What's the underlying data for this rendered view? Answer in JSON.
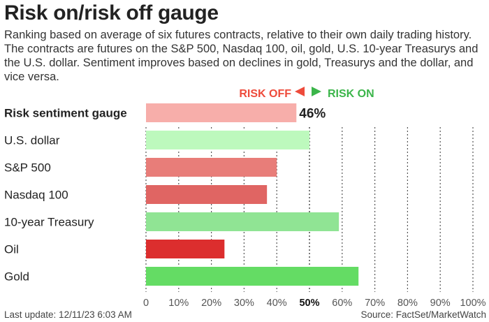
{
  "title": "Risk on/risk off gauge",
  "subtitle": "Ranking based on average of six futures contracts, relative to their own daily trading history. The contracts are futures on the S&P 500, Nasdaq 100, oil, gold, U.S. 10-year Treasurys and the U.S. dollar. Sentiment improves based on declines in gold, Treasurys and the dollar, and vice versa.",
  "legend": {
    "risk_off": "RISK OFF",
    "risk_on": "RISK ON",
    "risk_off_color": "#ee4b3b",
    "risk_on_color": "#3bb54a"
  },
  "footer": {
    "last_update": "Last update: 12/11/23 6:03 AM",
    "source": "Source: FactSet/MarketWatch"
  },
  "chart_data": {
    "type": "bar",
    "orientation": "horizontal",
    "title": "Risk on/risk off gauge",
    "categories": [
      "Risk sentiment gauge",
      "U.S. dollar",
      "S&P 500",
      "Nasdaq 100",
      "10-year Treasury",
      "Oil",
      "Gold"
    ],
    "values": [
      46,
      50,
      40,
      37,
      59,
      24,
      65
    ],
    "colors": [
      "#f7aeaa",
      "#bdf9bd",
      "#e87d79",
      "#e06563",
      "#90e494",
      "#dc2e2e",
      "#64dc64"
    ],
    "value_labels": [
      "46%",
      "",
      "",
      "",
      "",
      "",
      ""
    ],
    "xlim": [
      0,
      100
    ],
    "xticks": [
      "0",
      "10%",
      "20%",
      "30%",
      "40%",
      "50%",
      "60%",
      "70%",
      "80%",
      "90%",
      "100%"
    ],
    "grid": "vertical dotted",
    "xlabel": "",
    "ylabel": ""
  }
}
